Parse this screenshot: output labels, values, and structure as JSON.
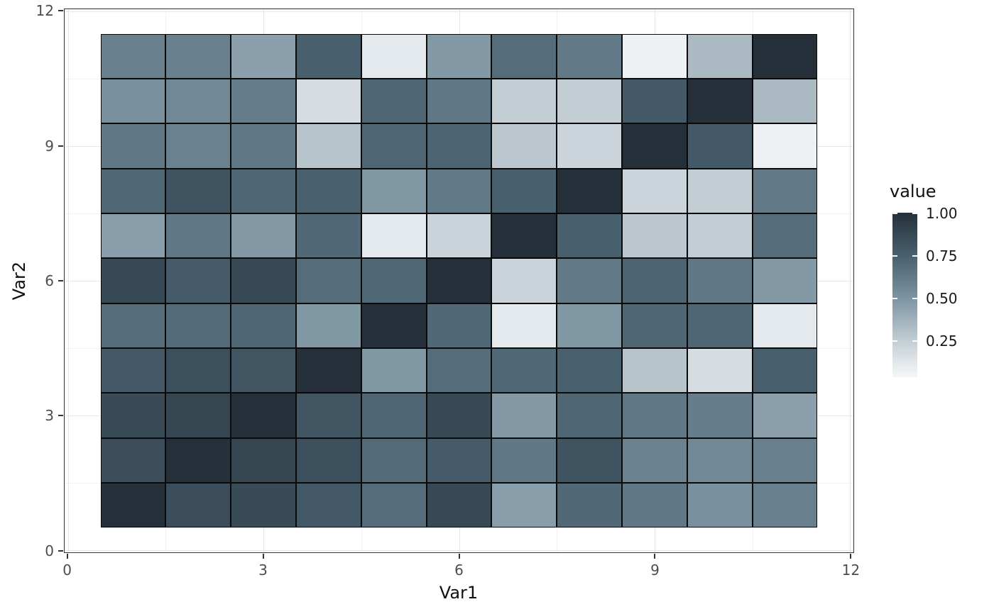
{
  "chart_data": {
    "type": "heatmap",
    "title": "",
    "xlabel": "Var1",
    "ylabel": "Var2",
    "legend": {
      "title": "value",
      "ticks": [
        1.0,
        0.75,
        0.5,
        0.25
      ],
      "tick_labels": [
        "1.00",
        "0.75",
        "0.50",
        "0.25"
      ],
      "bar_value_top": 1.005,
      "bar_value_bottom": 0.035
    },
    "x": [
      1,
      2,
      3,
      4,
      5,
      6,
      7,
      8,
      9,
      10,
      11
    ],
    "y": [
      1,
      2,
      3,
      4,
      5,
      6,
      7,
      8,
      9,
      10,
      11
    ],
    "matrix_rows_are_y_bottom_to_top": true,
    "matrix": [
      [
        1.0,
        0.85,
        0.86,
        0.79,
        0.69,
        0.87,
        0.46,
        0.71,
        0.64,
        0.52,
        0.6
      ],
      [
        0.85,
        1.0,
        0.89,
        0.84,
        0.7,
        0.78,
        0.64,
        0.82,
        0.59,
        0.56,
        0.6
      ],
      [
        0.86,
        0.89,
        1.0,
        0.81,
        0.72,
        0.87,
        0.48,
        0.72,
        0.64,
        0.61,
        0.45
      ],
      [
        0.79,
        0.84,
        0.81,
        1.0,
        0.49,
        0.69,
        0.71,
        0.75,
        0.29,
        0.17,
        0.76
      ],
      [
        0.69,
        0.7,
        0.72,
        0.49,
        1.0,
        0.71,
        0.11,
        0.49,
        0.72,
        0.72,
        0.11
      ],
      [
        0.87,
        0.78,
        0.87,
        0.69,
        0.71,
        1.0,
        0.22,
        0.63,
        0.73,
        0.64,
        0.48
      ],
      [
        0.46,
        0.64,
        0.48,
        0.71,
        0.11,
        0.22,
        1.0,
        0.76,
        0.28,
        0.25,
        0.69
      ],
      [
        0.71,
        0.82,
        0.72,
        0.75,
        0.49,
        0.63,
        0.76,
        1.0,
        0.21,
        0.25,
        0.63
      ],
      [
        0.64,
        0.59,
        0.64,
        0.29,
        0.72,
        0.73,
        0.28,
        0.21,
        1.0,
        0.79,
        0.07
      ],
      [
        0.52,
        0.56,
        0.61,
        0.17,
        0.72,
        0.64,
        0.25,
        0.25,
        0.79,
        1.0,
        0.34
      ],
      [
        0.6,
        0.6,
        0.45,
        0.76,
        0.11,
        0.48,
        0.69,
        0.63,
        0.07,
        0.34,
        1.0
      ]
    ],
    "xlim": [
      -0.05,
      12.05
    ],
    "ylim": [
      -0.05,
      12.05
    ],
    "x_ticks": [
      0,
      3,
      6,
      9,
      12
    ],
    "x_tick_labels": [
      "0",
      "3",
      "6",
      "9",
      "12"
    ],
    "y_ticks": [
      0,
      3,
      6,
      9,
      12
    ],
    "y_tick_labels": [
      "0",
      "3",
      "6",
      "9",
      "12"
    ],
    "grid": true,
    "grid_major_positions": [
      0,
      3,
      6,
      9,
      12
    ],
    "grid_minor_positions": [
      1.5,
      4.5,
      7.5,
      10.5
    ],
    "legend_position": "right",
    "colorscale": {
      "stops": [
        [
          0.05,
          "#f2f5f7"
        ],
        [
          0.25,
          "#c3cdd4"
        ],
        [
          0.5,
          "#7d95a2"
        ],
        [
          0.75,
          "#49616f"
        ],
        [
          1.0,
          "#26303a"
        ]
      ]
    }
  },
  "colors": {
    "background": "#ffffff",
    "panel_border": "#333333",
    "grid_major": "#e6e6e6",
    "grid_minor": "#f2f2f2",
    "tile_border": "#0a0a0a",
    "tick_mark": "#333333",
    "tick_label": "#4d4d4d",
    "axis_title": "#111111",
    "legend_label": "#1a1a1a",
    "legend_title": "#111111"
  }
}
